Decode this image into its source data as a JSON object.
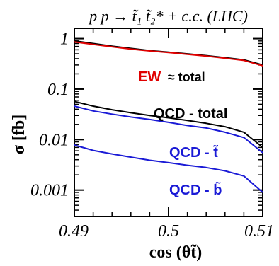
{
  "chart_data": {
    "type": "line",
    "title": "p p → t̃₁ t̃₂* + c.c. (LHC)",
    "xlabel": "cos (θt̃)",
    "ylabel": "σ [fb]",
    "x_scale": "linear",
    "y_scale": "log",
    "xlim": [
      0.49,
      0.51
    ],
    "ylim": [
      0.0003,
      1.6
    ],
    "x_ticks": [
      {
        "value": 0.49,
        "label": "0.49"
      },
      {
        "value": 0.5,
        "label": "0.5"
      },
      {
        "value": 0.51,
        "label": "0.51"
      }
    ],
    "y_ticks": [
      {
        "value": 1,
        "label": "1"
      },
      {
        "value": 0.1,
        "label": "0.1"
      },
      {
        "value": 0.01,
        "label": "0.01"
      },
      {
        "value": 0.001,
        "label": "0.001"
      }
    ],
    "x": [
      0.49,
      0.492,
      0.494,
      0.496,
      0.498,
      0.5,
      0.502,
      0.504,
      0.506,
      0.508,
      0.51
    ],
    "series": [
      {
        "color": "#000000",
        "values": [
          0.9,
          0.8,
          0.71,
          0.64,
          0.58,
          0.54,
          0.5,
          0.46,
          0.42,
          0.38,
          0.3
        ]
      },
      {
        "color": "#e00000",
        "values": [
          0.86,
          0.77,
          0.69,
          0.62,
          0.57,
          0.53,
          0.49,
          0.45,
          0.41,
          0.37,
          0.29
        ]
      },
      {
        "color": "#000000",
        "values": [
          0.057,
          0.046,
          0.039,
          0.034,
          0.03,
          0.027,
          0.024,
          0.021,
          0.018,
          0.014,
          0.007
        ]
      },
      {
        "color": "#1a1ad6",
        "values": [
          0.046,
          0.037,
          0.032,
          0.028,
          0.025,
          0.022,
          0.019,
          0.017,
          0.014,
          0.011,
          0.0055
        ]
      },
      {
        "color": "#1a1ad6",
        "values": [
          0.0078,
          0.0061,
          0.0052,
          0.0045,
          0.0039,
          0.0035,
          0.0031,
          0.0028,
          0.0024,
          0.0019,
          0.0009
        ]
      }
    ],
    "annotations": [
      {
        "label": "EW",
        "label_suffix": "≈ total",
        "color": "#e00000",
        "suffix_color": "#000000"
      },
      {
        "label": "QCD - total",
        "color": "#000000"
      },
      {
        "label": "QCD - t̃",
        "color": "#1a1ad6"
      },
      {
        "label": "QCD - b̃",
        "color": "#1a1ad6"
      }
    ],
    "grid": false,
    "legend": "none"
  }
}
